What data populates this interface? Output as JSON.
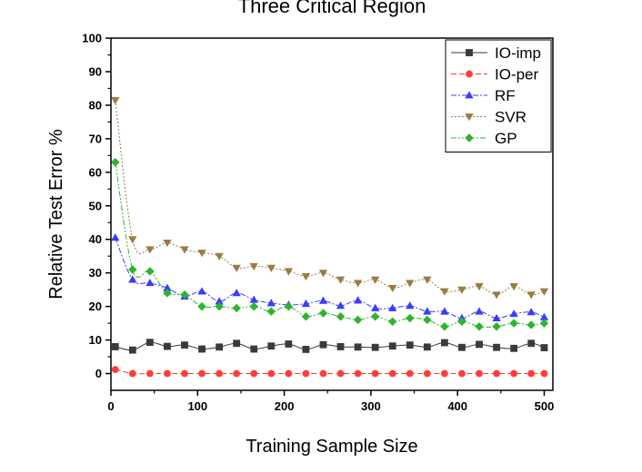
{
  "chart_data": {
    "type": "line",
    "title": "Three Critical Region",
    "xlabel": "Training Sample Size",
    "ylabel": "Relative Test Error %",
    "xlim": [
      0,
      510
    ],
    "ylim": [
      -5,
      100
    ],
    "xticks": [
      0,
      100,
      200,
      300,
      400,
      500
    ],
    "yticks": [
      0,
      10,
      20,
      30,
      40,
      50,
      60,
      70,
      80,
      90,
      100
    ],
    "legend_position": "top-right",
    "series": [
      {
        "name": "IO-imp",
        "color": "#3a3a3a",
        "marker": "square",
        "dash": "solid",
        "x": [
          5,
          25,
          45,
          65,
          85,
          105,
          125,
          145,
          165,
          185,
          205,
          225,
          245,
          265,
          285,
          305,
          325,
          345,
          365,
          385,
          405,
          425,
          445,
          465,
          485,
          500
        ],
        "y": [
          8,
          7,
          9.3,
          8.1,
          8.5,
          7.3,
          7.9,
          9,
          7.3,
          8.2,
          8.8,
          7.2,
          8.6,
          8,
          7.9,
          7.8,
          8.2,
          8.5,
          7.9,
          9.2,
          7.8,
          8.7,
          7.8,
          7.5,
          9,
          7.7
        ]
      },
      {
        "name": "IO-per",
        "color": "#ff3b3b",
        "marker": "circle",
        "dash": "dash",
        "x": [
          5,
          25,
          45,
          65,
          85,
          105,
          125,
          145,
          165,
          185,
          205,
          225,
          245,
          265,
          285,
          305,
          325,
          345,
          365,
          385,
          405,
          425,
          445,
          465,
          485,
          500
        ],
        "y": [
          1.2,
          0,
          0,
          0,
          0,
          0,
          0,
          0,
          0,
          0,
          0,
          0,
          0,
          0,
          0,
          0,
          0,
          0,
          0,
          0,
          0,
          0,
          0,
          0,
          0,
          0
        ]
      },
      {
        "name": "RF",
        "color": "#3b3bff",
        "marker": "triangle-up",
        "dash": "dashdot",
        "x": [
          5,
          25,
          45,
          65,
          85,
          105,
          125,
          145,
          165,
          185,
          205,
          225,
          245,
          265,
          285,
          305,
          325,
          345,
          365,
          385,
          405,
          425,
          445,
          465,
          485,
          500
        ],
        "y": [
          40.5,
          28,
          27,
          25.5,
          23,
          24.5,
          21.5,
          24,
          22,
          21,
          20.5,
          20.8,
          21.7,
          20.2,
          21.8,
          19.5,
          19.5,
          20.2,
          18.5,
          18.5,
          16.5,
          18.5,
          16.5,
          17.8,
          18.3,
          16.8
        ]
      },
      {
        "name": "SVR",
        "color": "#9a7b44",
        "marker": "triangle-down",
        "dash": "dot",
        "x": [
          5,
          25,
          45,
          65,
          85,
          105,
          125,
          145,
          165,
          185,
          205,
          225,
          245,
          265,
          285,
          305,
          325,
          345,
          365,
          385,
          405,
          425,
          445,
          465,
          485,
          500
        ],
        "y": [
          81.5,
          40,
          37,
          39,
          37,
          36,
          35,
          31.5,
          32,
          31.5,
          30.5,
          29,
          30,
          28,
          27,
          28,
          25.5,
          27,
          28,
          24.5,
          25,
          26,
          23.5,
          26,
          23.5,
          24.5
        ]
      },
      {
        "name": "GP",
        "color": "#2db52d",
        "marker": "diamond",
        "dash": "dashdotdot",
        "x": [
          5,
          25,
          45,
          65,
          85,
          105,
          125,
          145,
          165,
          185,
          205,
          225,
          245,
          265,
          285,
          305,
          325,
          345,
          365,
          385,
          405,
          425,
          445,
          465,
          485,
          500
        ],
        "y": [
          63,
          31,
          30.5,
          24,
          23.5,
          20,
          20,
          19.5,
          20,
          18.5,
          20,
          17,
          18,
          17,
          16,
          17,
          15.5,
          16.5,
          16,
          14,
          15.5,
          14,
          14,
          15,
          14.5,
          15
        ]
      }
    ]
  }
}
